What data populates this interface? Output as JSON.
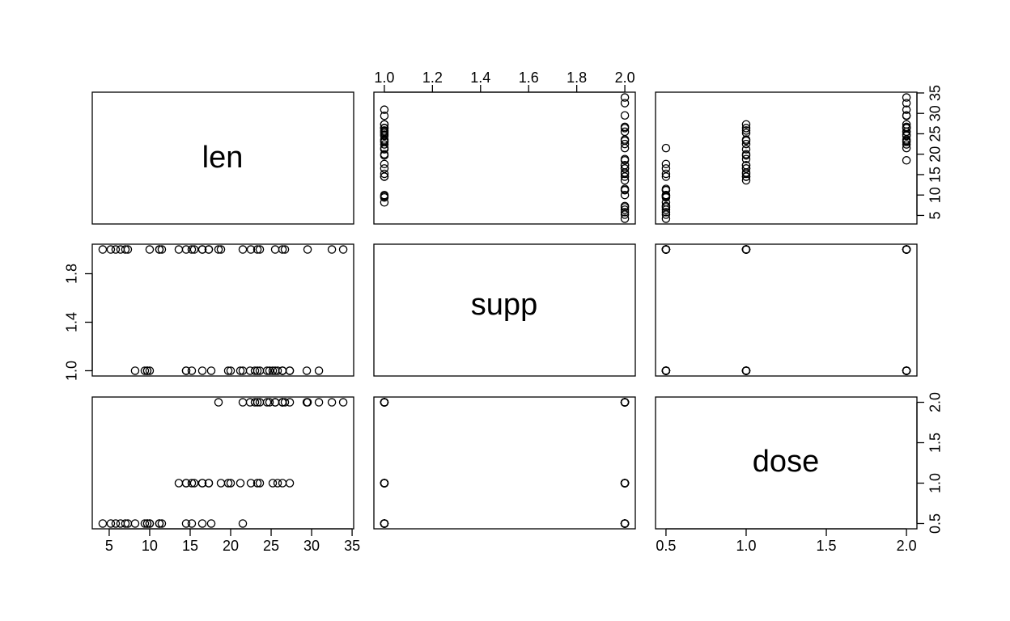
{
  "chart_data": {
    "type": "scatter",
    "layout": "pairs-matrix",
    "variables": [
      "len",
      "supp",
      "dose"
    ],
    "axis_ticks": {
      "len": [
        "5",
        "10",
        "15",
        "20",
        "25",
        "30",
        "35"
      ],
      "supp": [
        "1.0",
        "1.2",
        "1.4",
        "1.6",
        "1.8",
        "2.0"
      ],
      "supp_left": [
        "1.0",
        "1.4",
        "1.8"
      ],
      "dose": [
        "0.5",
        "1.0",
        "1.5",
        "2.0"
      ]
    },
    "ranges": {
      "len": [
        4.2,
        33.9
      ],
      "supp": [
        1,
        2
      ],
      "dose": [
        0.5,
        2
      ]
    },
    "observations": {
      "len": [
        4.2,
        11.5,
        7.3,
        5.8,
        6.4,
        10,
        11.2,
        11.2,
        5.2,
        7,
        16.5,
        16.5,
        15.2,
        17.3,
        22.5,
        17.3,
        13.6,
        14.5,
        18.8,
        15.5,
        23.6,
        18.5,
        33.9,
        25.5,
        26.4,
        32.5,
        26.7,
        21.5,
        23.3,
        29.5,
        15.2,
        21.5,
        17.6,
        9.7,
        14.5,
        10,
        8.2,
        9.4,
        16.5,
        9.7,
        19.7,
        23.3,
        23.6,
        26.4,
        20,
        25.2,
        25.8,
        21.2,
        14.5,
        27.3,
        25.5,
        26.4,
        22.4,
        24.5,
        24.8,
        30.9,
        26.4,
        27.3,
        29.4,
        23
      ],
      "supp": [
        2,
        2,
        2,
        2,
        2,
        2,
        2,
        2,
        2,
        2,
        2,
        2,
        2,
        2,
        2,
        2,
        2,
        2,
        2,
        2,
        2,
        2,
        2,
        2,
        2,
        2,
        2,
        2,
        2,
        2,
        1,
        1,
        1,
        1,
        1,
        1,
        1,
        1,
        1,
        1,
        1,
        1,
        1,
        1,
        1,
        1,
        1,
        1,
        1,
        1,
        1,
        1,
        1,
        1,
        1,
        1,
        1,
        1,
        1,
        1
      ],
      "dose": [
        0.5,
        0.5,
        0.5,
        0.5,
        0.5,
        0.5,
        0.5,
        0.5,
        0.5,
        0.5,
        1,
        1,
        1,
        1,
        1,
        1,
        1,
        1,
        1,
        1,
        2,
        2,
        2,
        2,
        2,
        2,
        2,
        2,
        2,
        2,
        0.5,
        0.5,
        0.5,
        0.5,
        0.5,
        0.5,
        0.5,
        0.5,
        0.5,
        0.5,
        1,
        1,
        1,
        1,
        1,
        1,
        1,
        1,
        1,
        1,
        2,
        2,
        2,
        2,
        2,
        2,
        2,
        2,
        2,
        2
      ]
    },
    "grid": false,
    "legend": "none"
  }
}
